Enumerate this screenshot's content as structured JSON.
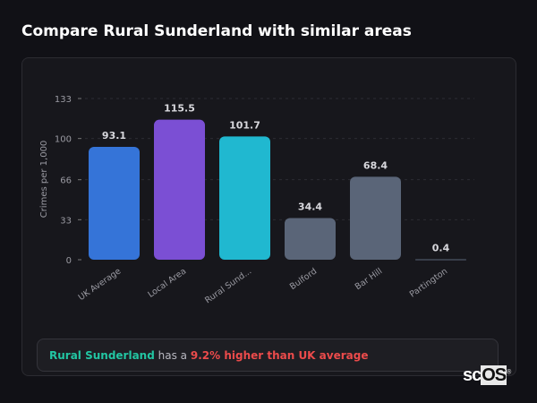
{
  "title": "Compare Rural Sunderland with similar areas",
  "chart_data": {
    "type": "bar",
    "categories": [
      "UK Average",
      "Local Area",
      "Rural Sund...",
      "Bulford",
      "Bar Hill",
      "Partington"
    ],
    "values": [
      93.1,
      115.5,
      101.7,
      34.4,
      68.4,
      0.4
    ],
    "value_labels": [
      "93.1",
      "115.5",
      "101.7",
      "34.4",
      "68.4",
      "0.4"
    ],
    "colors": [
      "#3574d8",
      "#7b4fd4",
      "#20b8d0",
      "#5a6578",
      "#5a6578",
      "#5a6578"
    ],
    "ylabel": "Crimes per 1,000",
    "xlabel": "",
    "yticks": [
      0,
      33,
      66,
      100,
      133
    ],
    "ylim": [
      0,
      133
    ],
    "grid": true,
    "legend": "none"
  },
  "summary": {
    "area": "Rural Sunderland",
    "connector": "has a",
    "comparison": "9.2% higher than UK average"
  },
  "logo": {
    "text_a": "sc",
    "text_b": "OS",
    "mark": "®"
  }
}
